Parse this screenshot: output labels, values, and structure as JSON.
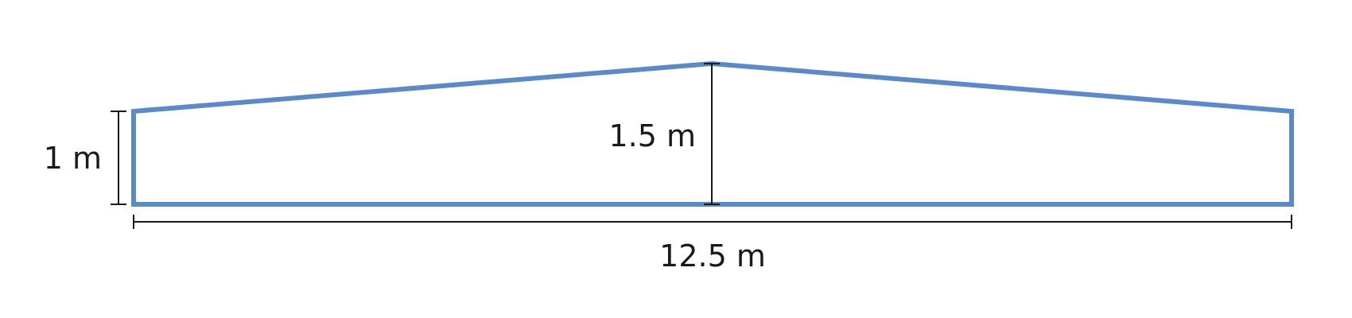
{
  "diagram": {
    "shape": "pentagon-cross-section",
    "outline_color": "#5b8ac6",
    "dimension_color": "#1a1a1a",
    "labels": {
      "side_height": "1 m",
      "center_height": "1.5 m",
      "width": "12.5 m"
    },
    "values": {
      "side_height_m": 1,
      "center_height_m": 1.5,
      "width_m": 12.5
    }
  }
}
